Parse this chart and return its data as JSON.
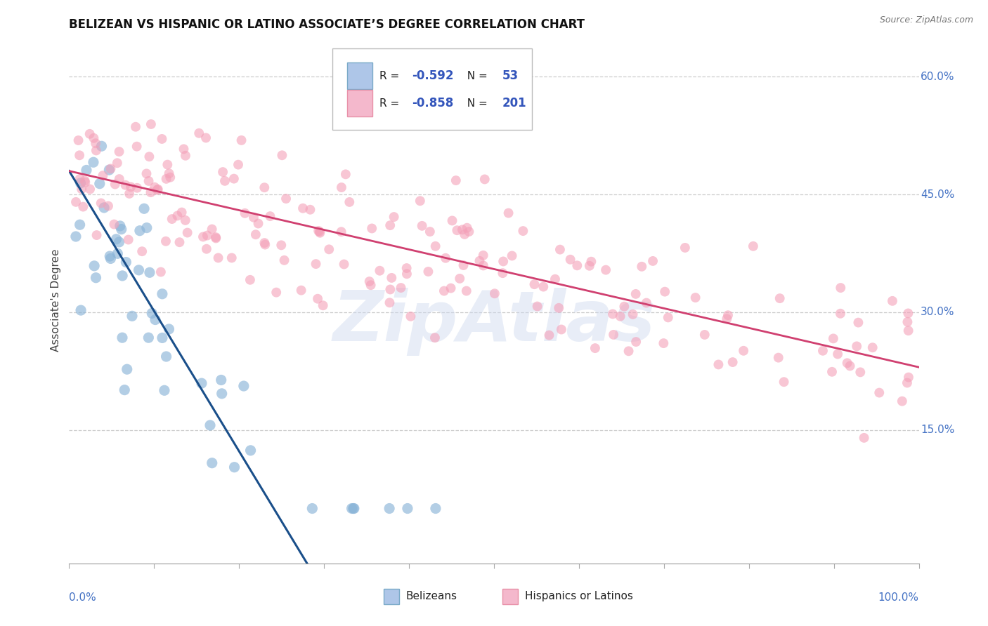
{
  "title": "BELIZEAN VS HISPANIC OR LATINO ASSOCIATE’S DEGREE CORRELATION CHART",
  "source": "Source: ZipAtlas.com",
  "ylabel": "Associate's Degree",
  "right_yticks": [
    "60.0%",
    "45.0%",
    "30.0%",
    "15.0%"
  ],
  "right_ytick_vals": [
    0.6,
    0.45,
    0.3,
    0.15
  ],
  "xlim": [
    0.0,
    1.0
  ],
  "ylim": [
    -0.02,
    0.65
  ],
  "blue_color": "#8ab4d8",
  "blue_edge": "#7aaac8",
  "pink_color": "#f4a0b8",
  "pink_edge": "#e890a8",
  "trend_blue": "#1a4f8a",
  "trend_pink": "#d04070",
  "watermark": "ZipAtlas",
  "legend_r1": "-0.592",
  "legend_n1": "53",
  "legend_r2": "-0.858",
  "legend_n2": "201",
  "blue_line_x": [
    0.0,
    0.28
  ],
  "blue_line_y": [
    0.48,
    -0.02
  ],
  "pink_line_x": [
    0.0,
    1.0
  ],
  "pink_line_y": [
    0.48,
    0.23
  ]
}
